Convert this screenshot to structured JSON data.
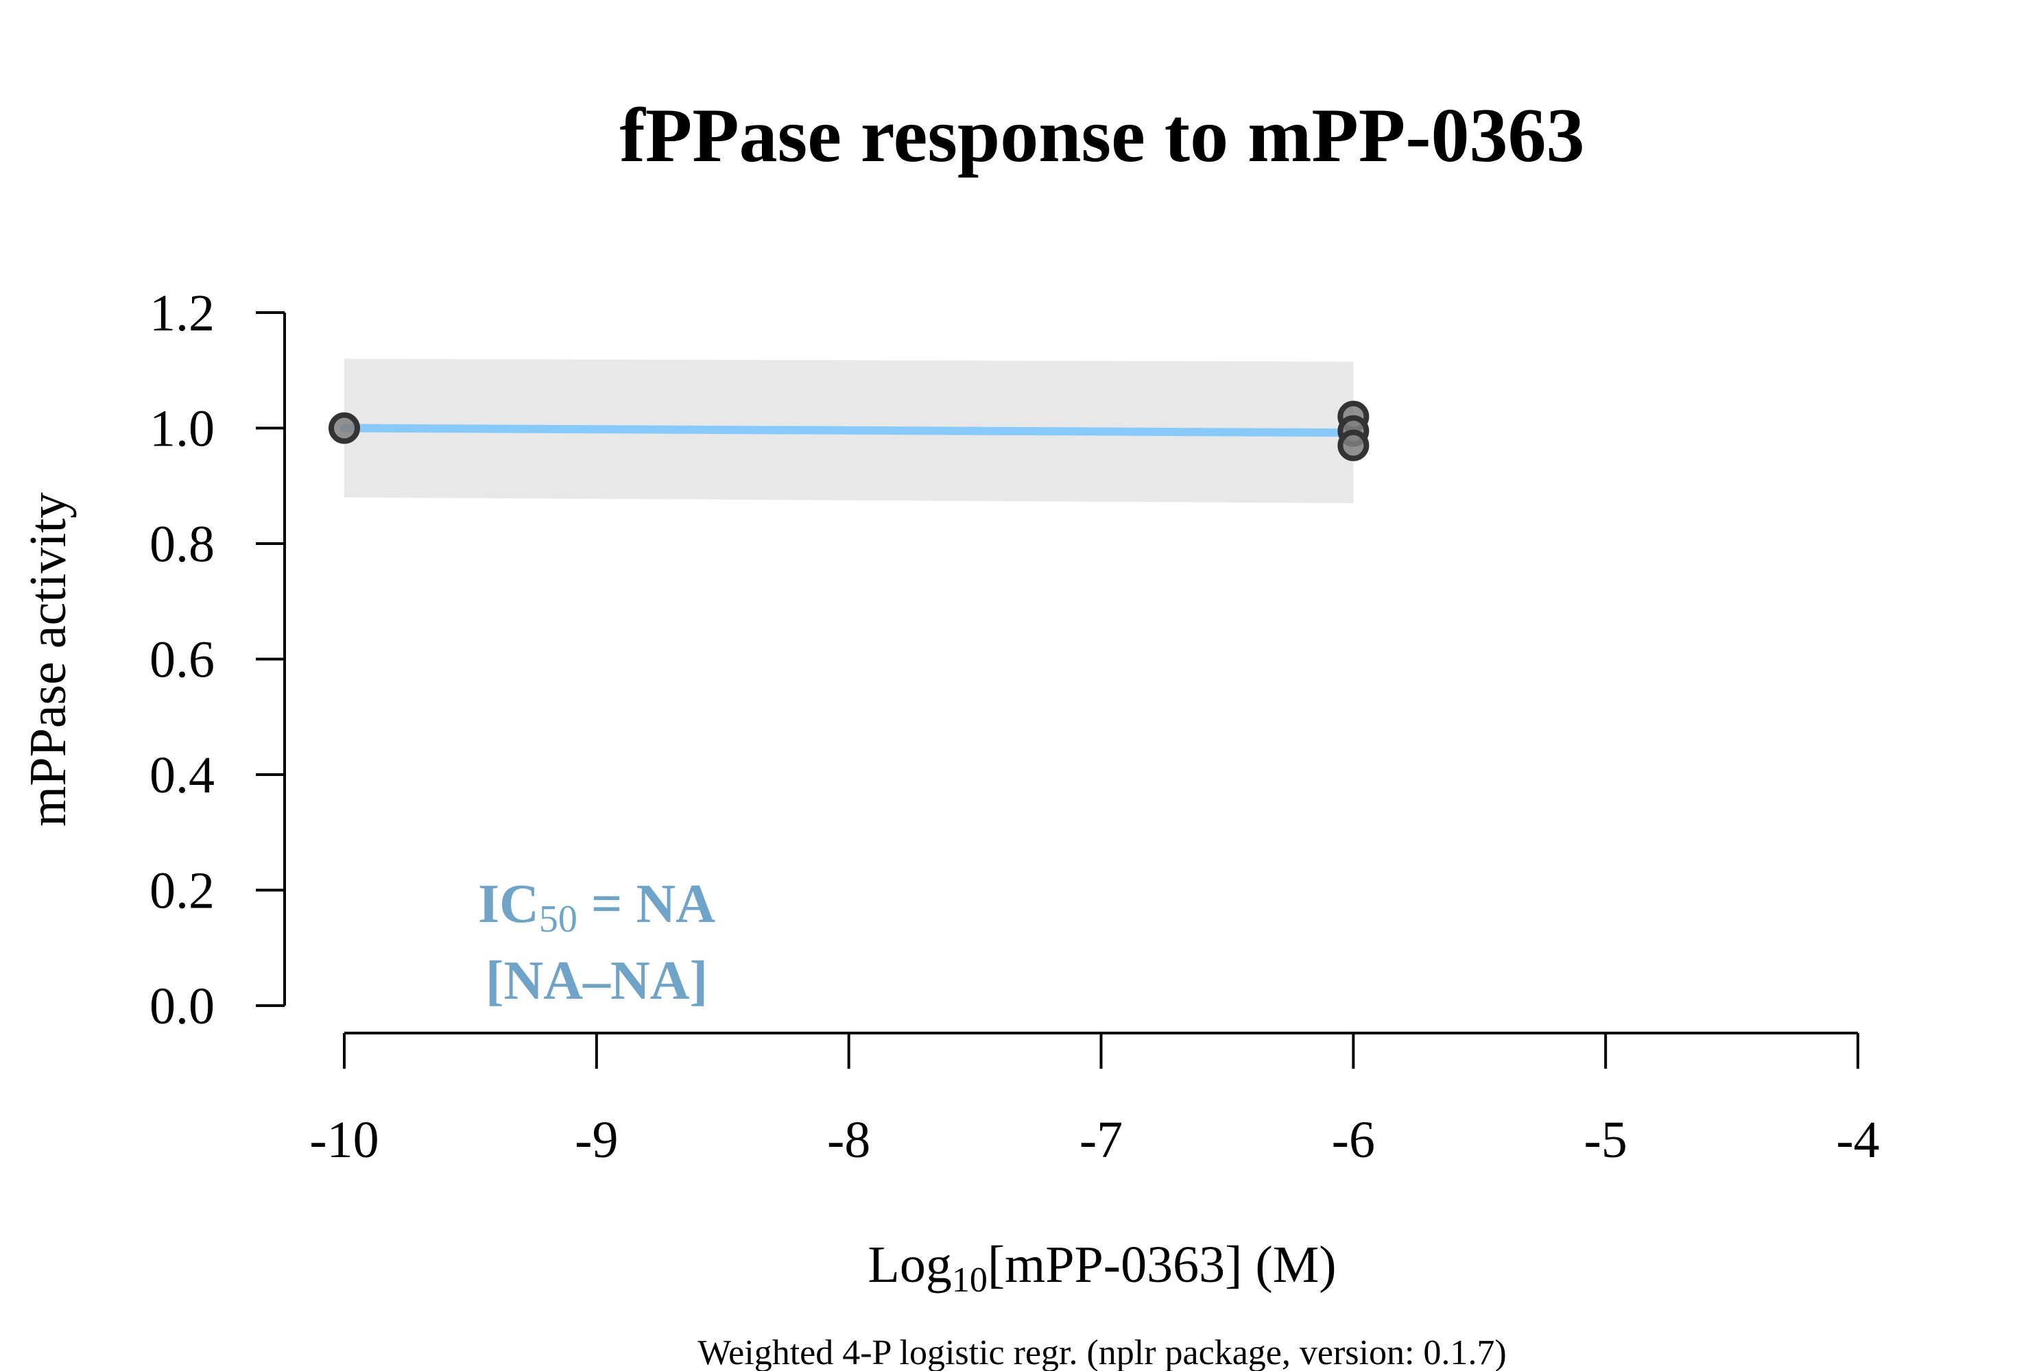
{
  "chart_data": {
    "type": "scatter",
    "title": "fPPase response to mPP-0363",
    "xlabel_prefix": "Log",
    "xlabel_sub": "10",
    "xlabel_suffix": "[mPP-0363] (M)",
    "ylabel": "mPPase activity",
    "footnote": "Weighted 4-P logistic regr. (nplr package, version: 0.1.7)",
    "xlim": [
      -10,
      -4
    ],
    "ylim": [
      0,
      1.2
    ],
    "x_ticks": [
      -10,
      -9,
      -8,
      -7,
      -6,
      -5,
      -4
    ],
    "x_tick_labels": [
      "-10",
      "-9",
      "-8",
      "-7",
      "-6",
      "-5",
      "-4"
    ],
    "y_ticks": [
      0,
      0.2,
      0.4,
      0.6,
      0.8,
      1.0,
      1.2
    ],
    "y_tick_labels": [
      "0.0",
      "0.2",
      "0.4",
      "0.6",
      "0.8",
      "1.0",
      "1.2"
    ],
    "points": [
      {
        "x": -10,
        "y": 1.0
      },
      {
        "x": -6,
        "y": 1.02
      },
      {
        "x": -6,
        "y": 0.995
      },
      {
        "x": -6,
        "y": 0.97
      }
    ],
    "fit_line": [
      {
        "x": -10,
        "y": 1.0
      },
      {
        "x": -6,
        "y": 0.992
      }
    ],
    "confidence_band": {
      "x": [
        -10,
        -6
      ],
      "upper": [
        1.12,
        1.115
      ],
      "lower": [
        0.88,
        0.87
      ]
    },
    "annotation": {
      "ic50_prefix": "IC",
      "ic50_sub": "50",
      "ic50_suffix": " = NA",
      "ci": "[NA–NA]"
    },
    "colors": {
      "fit": "#87CAFA",
      "band": "#E8E8E8",
      "point_fill": "#7F7F7F",
      "point_stroke": "#333333",
      "annotation": "#6FA3C8"
    },
    "grid": false,
    "legend": "none"
  }
}
